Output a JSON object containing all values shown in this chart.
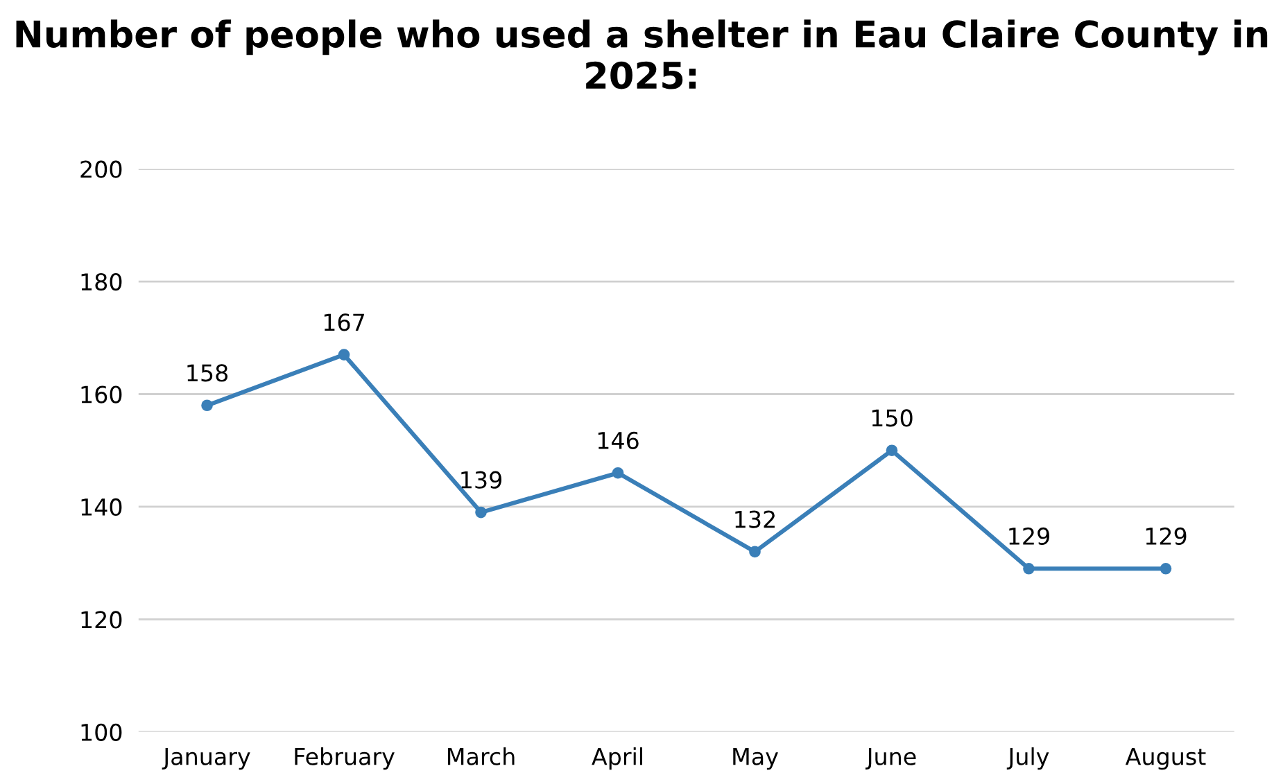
{
  "chart_data": {
    "type": "line",
    "title": "Number of people who used a shelter in Eau Claire County in 2025:",
    "categories": [
      "January",
      "February",
      "March",
      "April",
      "May",
      "June",
      "July",
      "August"
    ],
    "series": [
      {
        "color": "#3a7fb8",
        "values": [
          158,
          167,
          139,
          146,
          132,
          150,
          129,
          129
        ]
      }
    ],
    "ylim": [
      100,
      200
    ],
    "yticks": [
      100,
      120,
      140,
      160,
      180,
      200
    ],
    "grid": "y",
    "marker": "circle",
    "line_style": "solid",
    "data_labels": true,
    "legend": false
  }
}
